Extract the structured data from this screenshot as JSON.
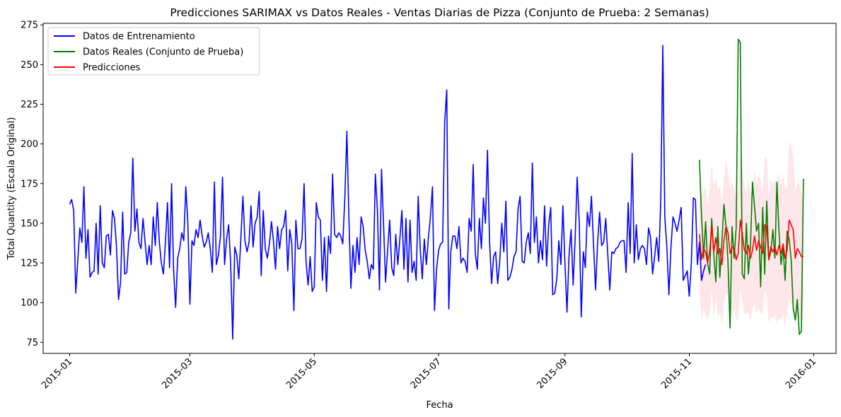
{
  "chart_data": {
    "type": "line",
    "title": "Predicciones SARIMAX vs Datos Reales - Ventas Diarias de Pizza (Conjunto de Prueba: 2 Semanas)",
    "xlabel": "Fecha",
    "ylabel": "Total Quantity (Escala Original)",
    "ylim": [
      68,
      276
    ],
    "xlim": [
      "2014-12-19",
      "2016-01-12"
    ],
    "x_tick_labels": [
      "2015-01",
      "2015-03",
      "2015-05",
      "2015-07",
      "2015-09",
      "2015-11",
      "2016-01"
    ],
    "x_tick_dates": [
      "2015-01-01",
      "2015-03-01",
      "2015-05-01",
      "2015-07-01",
      "2015-09-01",
      "2015-11-01",
      "2016-01-01"
    ],
    "y_ticks": [
      75,
      100,
      125,
      150,
      175,
      200,
      225,
      250,
      275
    ],
    "grid": false,
    "legend_position": "top-left",
    "series": [
      {
        "name": "Datos de Entrenamiento",
        "color": "#0000ff",
        "x_start": "2015-01-01",
        "values": [
          162,
          165,
          158,
          106,
          127,
          147,
          138,
          173,
          128,
          146,
          116,
          119,
          120,
          150,
          118,
          161,
          125,
          122,
          142,
          143,
          130,
          158,
          153,
          135,
          102,
          113,
          157,
          118,
          119,
          138,
          144,
          191,
          145,
          159,
          138,
          134,
          153,
          138,
          124,
          136,
          124,
          154,
          136,
          163,
          138,
          125,
          118,
          138,
          163,
          122,
          175,
          121,
          97,
          128,
          134,
          144,
          139,
          173,
          150,
          99,
          139,
          136,
          146,
          141,
          152,
          142,
          135,
          138,
          144,
          134,
          119,
          176,
          124,
          130,
          142,
          179,
          124,
          140,
          149,
          125,
          77,
          135,
          130,
          115,
          140,
          167,
          139,
          132,
          138,
          161,
          135,
          150,
          154,
          170,
          117,
          158,
          134,
          128,
          137,
          151,
          139,
          121,
          148,
          134,
          146,
          148,
          158,
          120,
          146,
          137,
          95,
          152,
          134,
          134,
          140,
          175,
          126,
          111,
          129,
          107,
          110,
          163,
          154,
          152,
          114,
          141,
          107,
          142,
          131,
          181,
          143,
          141,
          144,
          142,
          137,
          166,
          208,
          153,
          109,
          136,
          119,
          141,
          124,
          154,
          148,
          133,
          126,
          115,
          124,
          121,
          181,
          158,
          108,
          184,
          149,
          113,
          133,
          152,
          122,
          117,
          143,
          124,
          140,
          158,
          121,
          153,
          113,
          152,
          119,
          126,
          114,
          167,
          134,
          115,
          140,
          124,
          141,
          154,
          173,
          95,
          121,
          133,
          137,
          138,
          214,
          234,
          96,
          132,
          142,
          142,
          134,
          148,
          125,
          128,
          126,
          119,
          153,
          145,
          187,
          131,
          121,
          153,
          134,
          166,
          150,
          196,
          139,
          112,
          129,
          132,
          112,
          126,
          150,
          132,
          164,
          114,
          116,
          121,
          129,
          132,
          159,
          167,
          126,
          125,
          138,
          144,
          131,
          188,
          138,
          154,
          125,
          139,
          127,
          161,
          123,
          149,
          160,
          105,
          106,
          115,
          139,
          124,
          161,
          125,
          94,
          130,
          146,
          111,
          140,
          179,
          151,
          91,
          132,
          122,
          157,
          148,
          167,
          137,
          108,
          137,
          157,
          136,
          138,
          153,
          131,
          108,
          132,
          131,
          134,
          135,
          138,
          139,
          139,
          119,
          163,
          131,
          194,
          125,
          149,
          127,
          134,
          136,
          134,
          124,
          147,
          141,
          118,
          129,
          141,
          126,
          165,
          262,
          154,
          135,
          105,
          135,
          154,
          150,
          145,
          152,
          160,
          114,
          117,
          120,
          104,
          125,
          166,
          165,
          124,
          138,
          114,
          120,
          124
        ]
      },
      {
        "name": "Datos Reales (Conjunto de Prueba)",
        "color": "#008000",
        "x_start": "2015-11-06",
        "values": [
          190,
          155,
          128,
          151,
          125,
          118,
          153,
          131,
          113,
          148,
          116,
          138,
          162,
          148,
          125,
          84,
          148,
          128,
          147,
          266,
          264,
          118,
          115,
          150,
          118,
          135,
          176,
          161,
          145,
          150,
          110,
          160,
          118,
          164,
          127,
          132,
          146,
          128,
          176,
          145,
          124,
          135,
          114,
          145,
          140,
          127,
          96,
          89,
          102,
          80,
          82,
          178
        ]
      },
      {
        "name": "Predicciones",
        "color": "#ff0000",
        "x_start": "2015-11-06",
        "values": [
          143,
          127,
          134,
          132,
          125,
          132,
          148,
          132,
          141,
          131,
          134,
          124,
          139,
          148,
          144,
          131,
          135,
          134,
          127,
          131,
          152,
          144,
          133,
          131,
          136,
          128,
          133,
          142,
          133,
          139,
          135,
          131,
          149,
          148,
          127,
          135,
          132,
          135,
          130,
          136,
          131,
          137,
          128,
          133,
          152,
          149,
          146,
          128,
          134,
          132,
          129,
          129
        ],
        "ci_half_width": [
          35,
          38,
          38,
          40,
          36,
          38,
          40,
          41,
          38,
          40,
          40,
          38,
          40,
          42,
          40,
          40,
          42,
          38,
          38,
          42,
          42,
          42,
          40,
          38,
          42,
          40,
          38,
          42,
          40,
          42,
          42,
          38,
          42,
          44,
          40,
          44,
          42,
          42,
          44,
          46,
          42,
          44,
          44,
          40,
          50,
          50,
          46,
          42,
          42,
          42,
          40,
          40
        ]
      }
    ]
  }
}
